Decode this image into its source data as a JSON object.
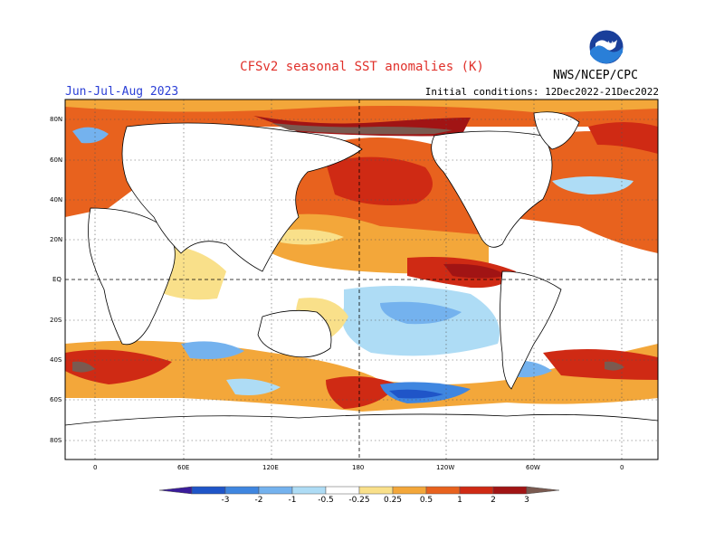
{
  "header": {
    "title": "CFSv2 seasonal SST anomalies (K)",
    "season": "Jun-Jul-Aug 2023",
    "initial_conditions": "Initial conditions: 12Dec2022-21Dec2022",
    "agency": "NWS/NCEP/CPC",
    "logo_icon": "noaa-logo-icon"
  },
  "map": {
    "lat_labels": [
      "80N",
      "60N",
      "40N",
      "20N",
      "EQ",
      "20S",
      "40S",
      "60S",
      "80S"
    ],
    "lon_labels": [
      "0",
      "60E",
      "120E",
      "180",
      "120W",
      "60W",
      "0"
    ]
  },
  "colorbar": {
    "labels": [
      "-3",
      "-2",
      "-1",
      "-0.5",
      "-0.25",
      "0.25",
      "0.5",
      "1",
      "2",
      "3"
    ],
    "colors": [
      "#3a1c9a",
      "#1f55c8",
      "#3f86e0",
      "#74b2ee",
      "#aedcf5",
      "#ffffff",
      "#f9e08a",
      "#f3a73a",
      "#e8621e",
      "#cf2a14",
      "#a11414",
      "#7a5a50"
    ]
  },
  "legend": {
    "anomaly_colors": {
      "strong_warm": "#a11414",
      "warm": "#e8621e",
      "mild_warm": "#f3a73a",
      "slight_warm": "#f9e08a",
      "slight_cool": "#aedcf5",
      "cool": "#3f86e0",
      "extreme_warm": "#7a5a50"
    }
  }
}
